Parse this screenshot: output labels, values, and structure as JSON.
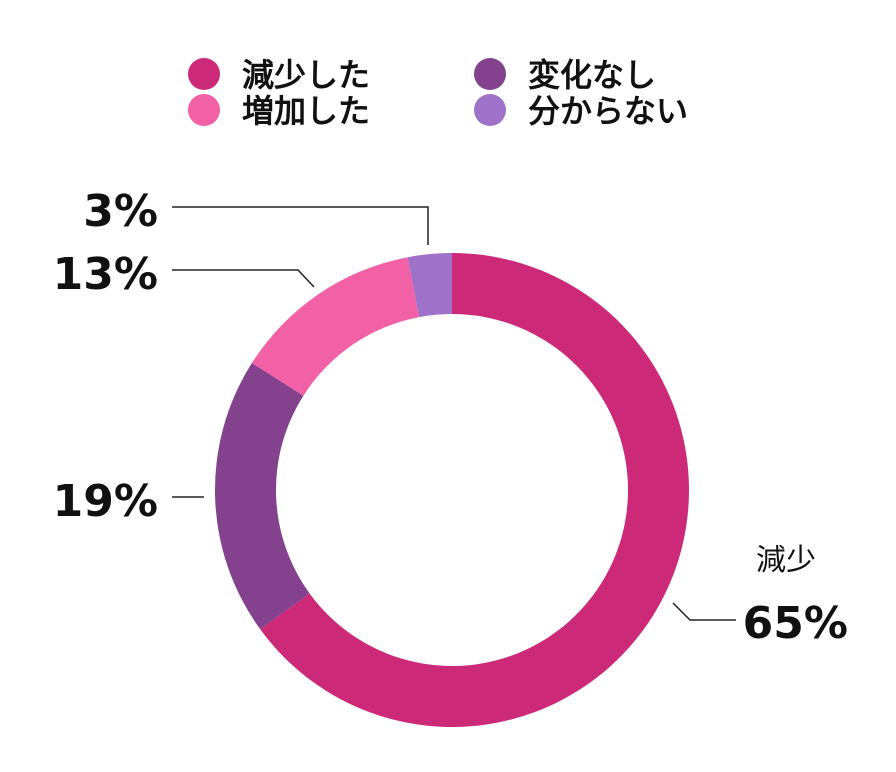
{
  "chart_data": {
    "type": "pie",
    "style": "donut",
    "categories": [
      "減少した",
      "増加した",
      "変化なし",
      "分からない"
    ],
    "values": [
      65,
      13,
      19,
      3
    ],
    "value_labels": [
      "65%",
      "13%",
      "19%",
      "3%"
    ],
    "callout_category_label": "減少",
    "colors": [
      "#cc2a78",
      "#f260a5",
      "#83418e",
      "#9e72c8"
    ],
    "legend": {
      "placement": "top",
      "columns": 2,
      "entries": [
        {
          "label": "減少した",
          "color": "#cc2a78"
        },
        {
          "label": "変化なし",
          "color": "#83418e"
        },
        {
          "label": "増加した",
          "color": "#f260a5"
        },
        {
          "label": "分からない",
          "color": "#9e72c8"
        }
      ]
    }
  }
}
